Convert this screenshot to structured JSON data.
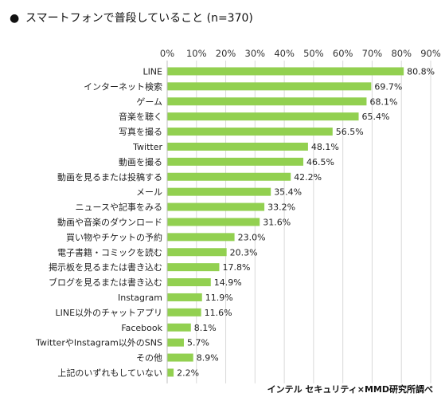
{
  "chart_data": {
    "type": "bar",
    "orientation": "horizontal",
    "title": "スマートフォンで普段していること (n=370)",
    "title_bullet": "●",
    "xlim": [
      0,
      90
    ],
    "x_ticks": [
      "0%",
      "10%",
      "20%",
      "30%",
      "40%",
      "50%",
      "60%",
      "70%",
      "80%",
      "90%"
    ],
    "grid": true,
    "bar_color": "#92d050",
    "categories": [
      "LINE",
      "インターネット検索",
      "ゲーム",
      "音楽を聴く",
      "写真を撮る",
      "Twitter",
      "動画を撮る",
      "動画を見るまたは投稿する",
      "メール",
      "ニュースや記事をみる",
      "動画や音楽のダウンロード",
      "買い物やチケットの予約",
      "電子書籍・コミックを読む",
      "掲示板を見るまたは書き込む",
      "ブログを見るまたは書き込む",
      "Instagram",
      "LINE以外のチャットアプリ",
      "Facebook",
      "TwitterやInstagram以外のSNS",
      "その他",
      "上記のいずれもしていない"
    ],
    "values": [
      80.8,
      69.7,
      68.1,
      65.4,
      56.5,
      48.1,
      46.5,
      42.2,
      35.4,
      33.2,
      31.6,
      23.0,
      20.3,
      17.8,
      14.9,
      11.9,
      11.6,
      8.1,
      5.7,
      8.9,
      2.2
    ],
    "value_labels": [
      "80.8%",
      "69.7%",
      "68.1%",
      "65.4%",
      "56.5%",
      "48.1%",
      "46.5%",
      "42.2%",
      "35.4%",
      "33.2%",
      "31.6%",
      "23.0%",
      "20.3%",
      "17.8%",
      "14.9%",
      "11.9%",
      "11.6%",
      "8.1%",
      "5.7%",
      "8.9%",
      "2.2%"
    ],
    "source": "インテル セキュリティ×MMD研究所調べ"
  }
}
